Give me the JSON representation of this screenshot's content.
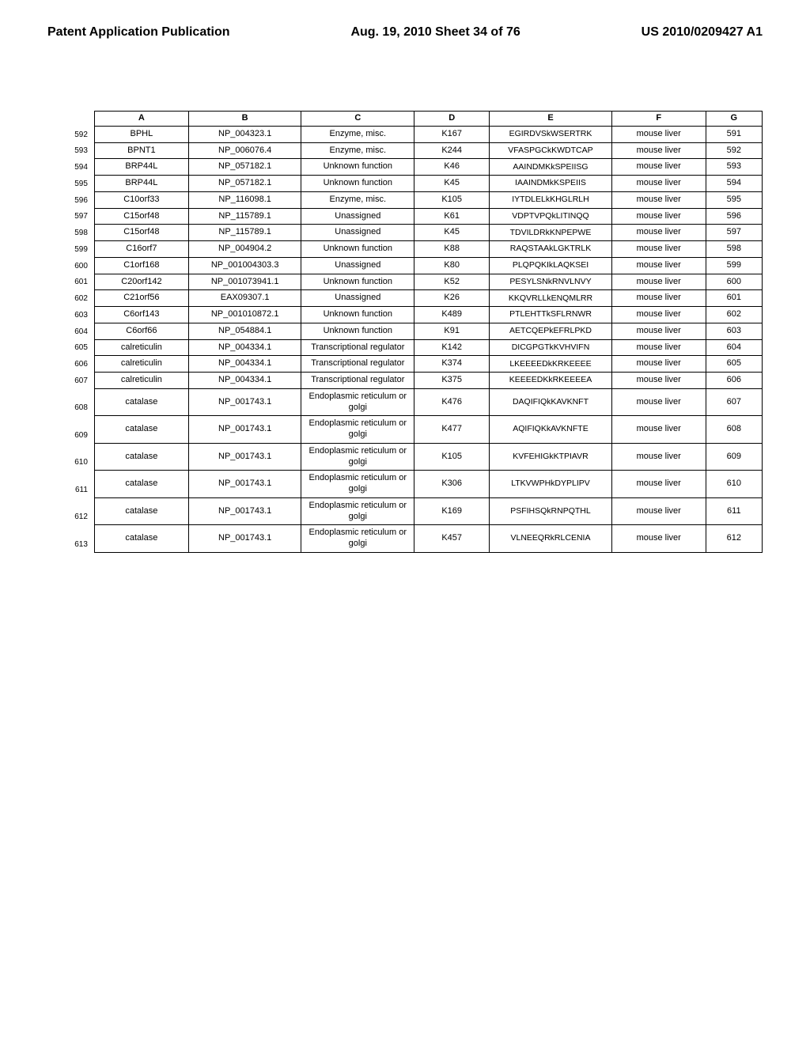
{
  "header": {
    "left": "Patent Application Publication",
    "center": "Aug. 19, 2010  Sheet 34 of 76",
    "right": "US 2010/0209427 A1"
  },
  "table": {
    "columns": [
      "A",
      "B",
      "C",
      "D",
      "E",
      "F",
      "G"
    ],
    "rows": [
      {
        "n": "592",
        "a": "BPHL",
        "b": "NP_004323.1",
        "c": "Enzyme, misc.",
        "d": "K167",
        "e": "EGIRDVSkWSERTRK",
        "f": "mouse liver",
        "g": "591"
      },
      {
        "n": "593",
        "a": "BPNT1",
        "b": "NP_006076.4",
        "c": "Enzyme, misc.",
        "d": "K244",
        "e": "VFASPGCkKWDTCAP",
        "f": "mouse liver",
        "g": "592"
      },
      {
        "n": "594",
        "a": "BRP44L",
        "b": "NP_057182.1",
        "c": "Unknown function",
        "d": "K46",
        "e": "AAINDMKkSPEIISG",
        "f": "mouse liver",
        "g": "593"
      },
      {
        "n": "595",
        "a": "BRP44L",
        "b": "NP_057182.1",
        "c": "Unknown function",
        "d": "K45",
        "e": "IAAINDMkKSPEIIS",
        "f": "mouse liver",
        "g": "594"
      },
      {
        "n": "596",
        "a": "C10orf33",
        "b": "NP_116098.1",
        "c": "Enzyme, misc.",
        "d": "K105",
        "e": "IYTDLELkKHGLRLH",
        "f": "mouse liver",
        "g": "595"
      },
      {
        "n": "597",
        "a": "C15orf48",
        "b": "NP_115789.1",
        "c": "Unassigned",
        "d": "K61",
        "e": "VDPTVPQkLITINQQ",
        "f": "mouse liver",
        "g": "596"
      },
      {
        "n": "598",
        "a": "C15orf48",
        "b": "NP_115789.1",
        "c": "Unassigned",
        "d": "K45",
        "e": "TDVILDRkKNPEPWE",
        "f": "mouse liver",
        "g": "597"
      },
      {
        "n": "599",
        "a": "C16orf7",
        "b": "NP_004904.2",
        "c": "Unknown function",
        "d": "K88",
        "e": "RAQSTAAkLGKTRLK",
        "f": "mouse liver",
        "g": "598"
      },
      {
        "n": "600",
        "a": "C1orf168",
        "b": "NP_001004303.3",
        "c": "Unassigned",
        "d": "K80",
        "e": "PLQPQKIkLAQKSEI",
        "f": "mouse liver",
        "g": "599"
      },
      {
        "n": "601",
        "a": "C20orf142",
        "b": "NP_001073941.1",
        "c": "Unknown function",
        "d": "K52",
        "e": "PESYLSNkRNVLNVY",
        "f": "mouse liver",
        "g": "600"
      },
      {
        "n": "602",
        "a": "C21orf56",
        "b": "EAX09307.1",
        "c": "Unassigned",
        "d": "K26",
        "e": "KKQVRLLkENQMLRR",
        "f": "mouse liver",
        "g": "601"
      },
      {
        "n": "603",
        "a": "C6orf143",
        "b": "NP_001010872.1",
        "c": "Unknown function",
        "d": "K489",
        "e": "PTLEHTTkSFLRNWR",
        "f": "mouse liver",
        "g": "602"
      },
      {
        "n": "604",
        "a": "C6orf66",
        "b": "NP_054884.1",
        "c": "Unknown function",
        "d": "K91",
        "e": "AETCQEPkEFRLPKD",
        "f": "mouse liver",
        "g": "603"
      },
      {
        "n": "605",
        "a": "calreticulin",
        "b": "NP_004334.1",
        "c": "Transcriptional regulator",
        "d": "K142",
        "e": "DICGPGTkKVHVIFN",
        "f": "mouse liver",
        "g": "604"
      },
      {
        "n": "606",
        "a": "calreticulin",
        "b": "NP_004334.1",
        "c": "Transcriptional regulator",
        "d": "K374",
        "e": "LKEEEEDkKRKEEEE",
        "f": "mouse liver",
        "g": "605"
      },
      {
        "n": "607",
        "a": "calreticulin",
        "b": "NP_004334.1",
        "c": "Transcriptional regulator",
        "d": "K375",
        "e": "KEEEEDKkRKEEEEA",
        "f": "mouse liver",
        "g": "606"
      },
      {
        "n": "608",
        "a": "catalase",
        "b": "NP_001743.1",
        "c": "Endoplasmic reticulum or golgi",
        "d": "K476",
        "e": "DAQIFIQkKAVKNFT",
        "f": "mouse liver",
        "g": "607"
      },
      {
        "n": "609",
        "a": "catalase",
        "b": "NP_001743.1",
        "c": "Endoplasmic reticulum or golgi",
        "d": "K477",
        "e": "AQIFIQKkAVKNFTE",
        "f": "mouse liver",
        "g": "608"
      },
      {
        "n": "610",
        "a": "catalase",
        "b": "NP_001743.1",
        "c": "Endoplasmic reticulum or golgi",
        "d": "K105",
        "e": "KVFEHIGkKTPIAVR",
        "f": "mouse liver",
        "g": "609"
      },
      {
        "n": "611",
        "a": "catalase",
        "b": "NP_001743.1",
        "c": "Endoplasmic reticulum or golgi",
        "d": "K306",
        "e": "LTKVWPHkDYPLIPV",
        "f": "mouse liver",
        "g": "610"
      },
      {
        "n": "612",
        "a": "catalase",
        "b": "NP_001743.1",
        "c": "Endoplasmic reticulum or golgi",
        "d": "K169",
        "e": "PSFIHSQkRNPQTHL",
        "f": "mouse liver",
        "g": "611"
      },
      {
        "n": "613",
        "a": "catalase",
        "b": "NP_001743.1",
        "c": "Endoplasmic reticulum or golgi",
        "d": "K457",
        "e": "VLNEEQRkRLCENIA",
        "f": "mouse liver",
        "g": "612"
      }
    ]
  },
  "style": {
    "page_bg": "#ffffff",
    "text_color": "#000000",
    "border_color": "#000000",
    "header_fontsize": 16,
    "cell_fontsize": 11
  }
}
